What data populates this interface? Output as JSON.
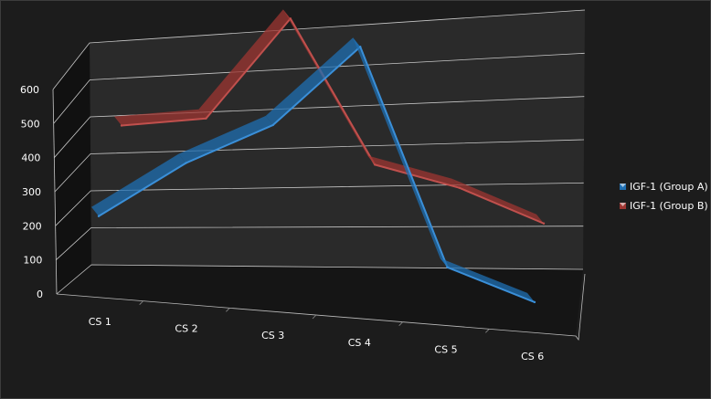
{
  "chart_data": {
    "type": "line",
    "style": "3d",
    "categories": [
      "CS 1",
      "CS 2",
      "CS 3",
      "CS 4",
      "CS 5",
      "CS 6"
    ],
    "series": [
      {
        "name": "IGF-1 (Group A)",
        "values": [
          155,
          275,
          365,
          535,
          110,
          55
        ],
        "color": "#1f6fb2"
      },
      {
        "name": "IGF-1 (Group B)",
        "values": [
          310,
          330,
          535,
          250,
          210,
          145
        ],
        "color": "#9e3632"
      }
    ],
    "ylim": [
      0,
      600
    ],
    "yticks": [
      "0",
      "100",
      "200",
      "300",
      "400",
      "500",
      "600"
    ],
    "grid": true,
    "legend": "right"
  },
  "colors": {
    "background": "#1c1c1c",
    "plot_wall": "#2a2a2a",
    "gridline": "#c8c8c8",
    "text": "#ffffff"
  }
}
